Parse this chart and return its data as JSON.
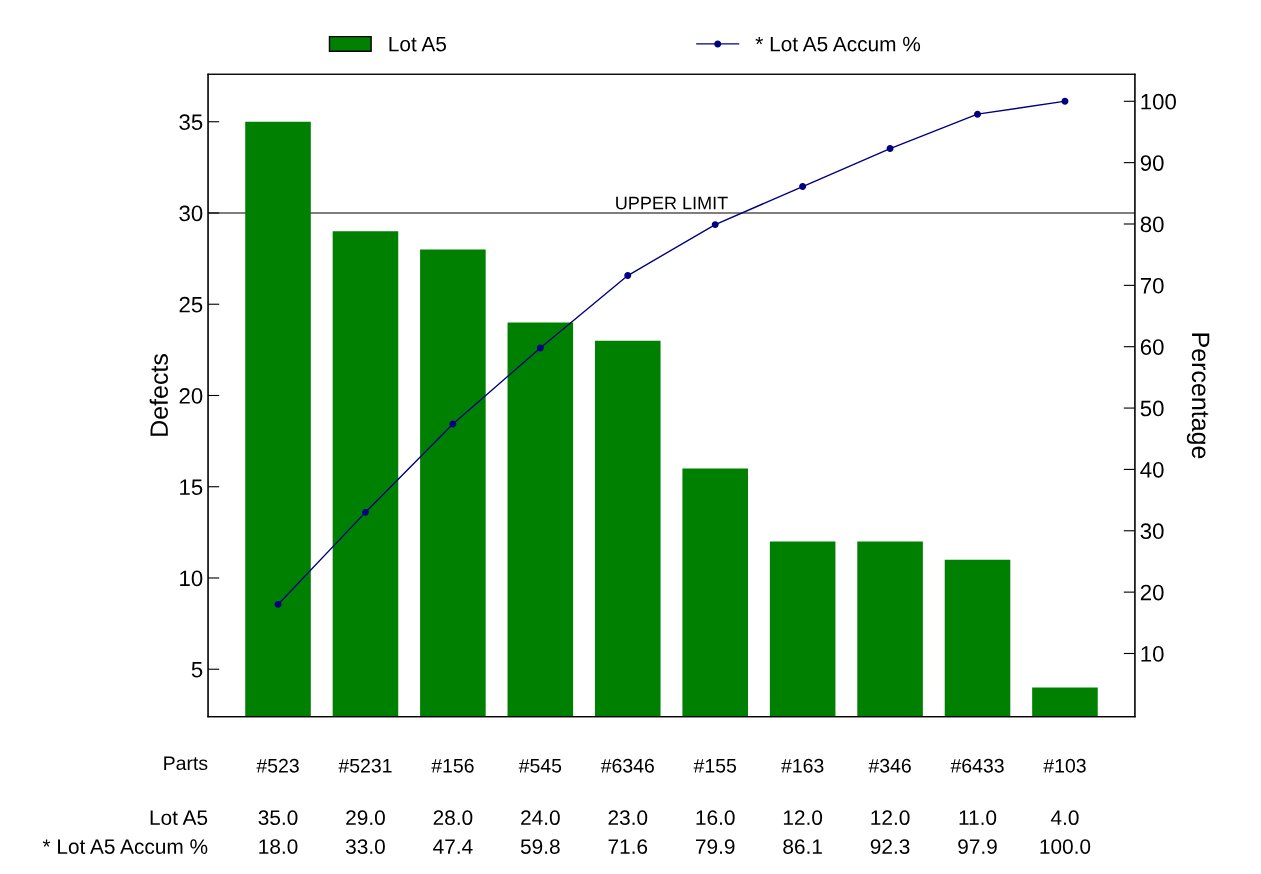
{
  "chart_data": {
    "type": "bar",
    "xlabel": "Parts",
    "ylabel": "Defects",
    "y2label": "Percentage",
    "categories": [
      "#523",
      "#5231",
      "#156",
      "#545",
      "#6346",
      "#155",
      "#163",
      "#346",
      "#6433",
      "#103"
    ],
    "series": [
      {
        "name": "Lot A5",
        "color": "#008000",
        "values": [
          35.0,
          29.0,
          28.0,
          24.0,
          23.0,
          16.0,
          12.0,
          12.0,
          11.0,
          4.0
        ],
        "value_labels": [
          "35.0",
          "29.0",
          "28.0",
          "24.0",
          "23.0",
          "16.0",
          "12.0",
          "12.0",
          "11.0",
          "4.0"
        ]
      },
      {
        "name": "* Lot A5 Accum %",
        "type": "line",
        "axis": "y2",
        "color": "#000080",
        "marker": "circle",
        "values": [
          18.0,
          33.0,
          47.4,
          59.8,
          71.6,
          79.9,
          86.1,
          92.3,
          97.9,
          100.0
        ],
        "value_labels": [
          "18.0",
          "33.0",
          "47.4",
          "59.8",
          "71.6",
          "79.9",
          "86.1",
          "92.3",
          "97.9",
          "100.0"
        ]
      }
    ],
    "ylim": [
      2.4,
      37.6
    ],
    "yticks": [
      5,
      10,
      15,
      20,
      25,
      30,
      35
    ],
    "y2lim": [
      -0.3,
      104.4
    ],
    "y2ticks": [
      10,
      20,
      30,
      40,
      50,
      60,
      70,
      80,
      90,
      100
    ],
    "ref_lines": [
      {
        "axis": "y",
        "value": 30,
        "label": "UPPER LIMIT",
        "color": "#000000"
      }
    ],
    "legend": "top",
    "grid": false
  }
}
